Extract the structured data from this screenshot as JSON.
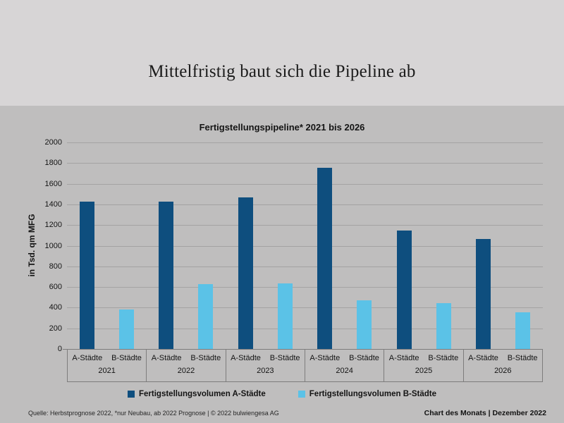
{
  "page": {
    "main_title": "Mittelfristig baut sich die Pipeline ab",
    "footer_left": "Quelle: Herbstprognose 2022, *nur Neubau, ab 2022 Prognose | © 2022 bulwiengesa AG",
    "footer_right": "Chart des Monats | Dezember 2022"
  },
  "colors": {
    "top_background": "#d7d5d6",
    "chart_background": "#bfbebe",
    "gridline": "#a4a3a3",
    "axis_line": "#7e7d7d",
    "series_a": "#0e4e7e",
    "series_b": "#5bc2e7"
  },
  "chart_data": {
    "type": "bar",
    "title": "Fertigstellungspipeline* 2021 bis 2026",
    "xlabel": "",
    "ylabel": "in Tsd. qm MFG",
    "ylim": [
      0,
      2000
    ],
    "yticks": [
      0,
      200,
      400,
      600,
      800,
      1000,
      1200,
      1400,
      1600,
      1800,
      2000
    ],
    "grid": true,
    "legend_position": "bottom",
    "categories": [
      "2021",
      "2022",
      "2023",
      "2024",
      "2025",
      "2026"
    ],
    "subcategories": [
      "A-Städte",
      "B-Städte"
    ],
    "series": [
      {
        "name": "Fertigstellungsvolumen A-Städte",
        "color": "#0e4e7e",
        "values": [
          1430,
          1430,
          1470,
          1755,
          1150,
          1065
        ]
      },
      {
        "name": "Fertigstellungsvolumen B-Städte",
        "color": "#5bc2e7",
        "values": [
          380,
          625,
          635,
          470,
          445,
          355
        ]
      }
    ]
  }
}
